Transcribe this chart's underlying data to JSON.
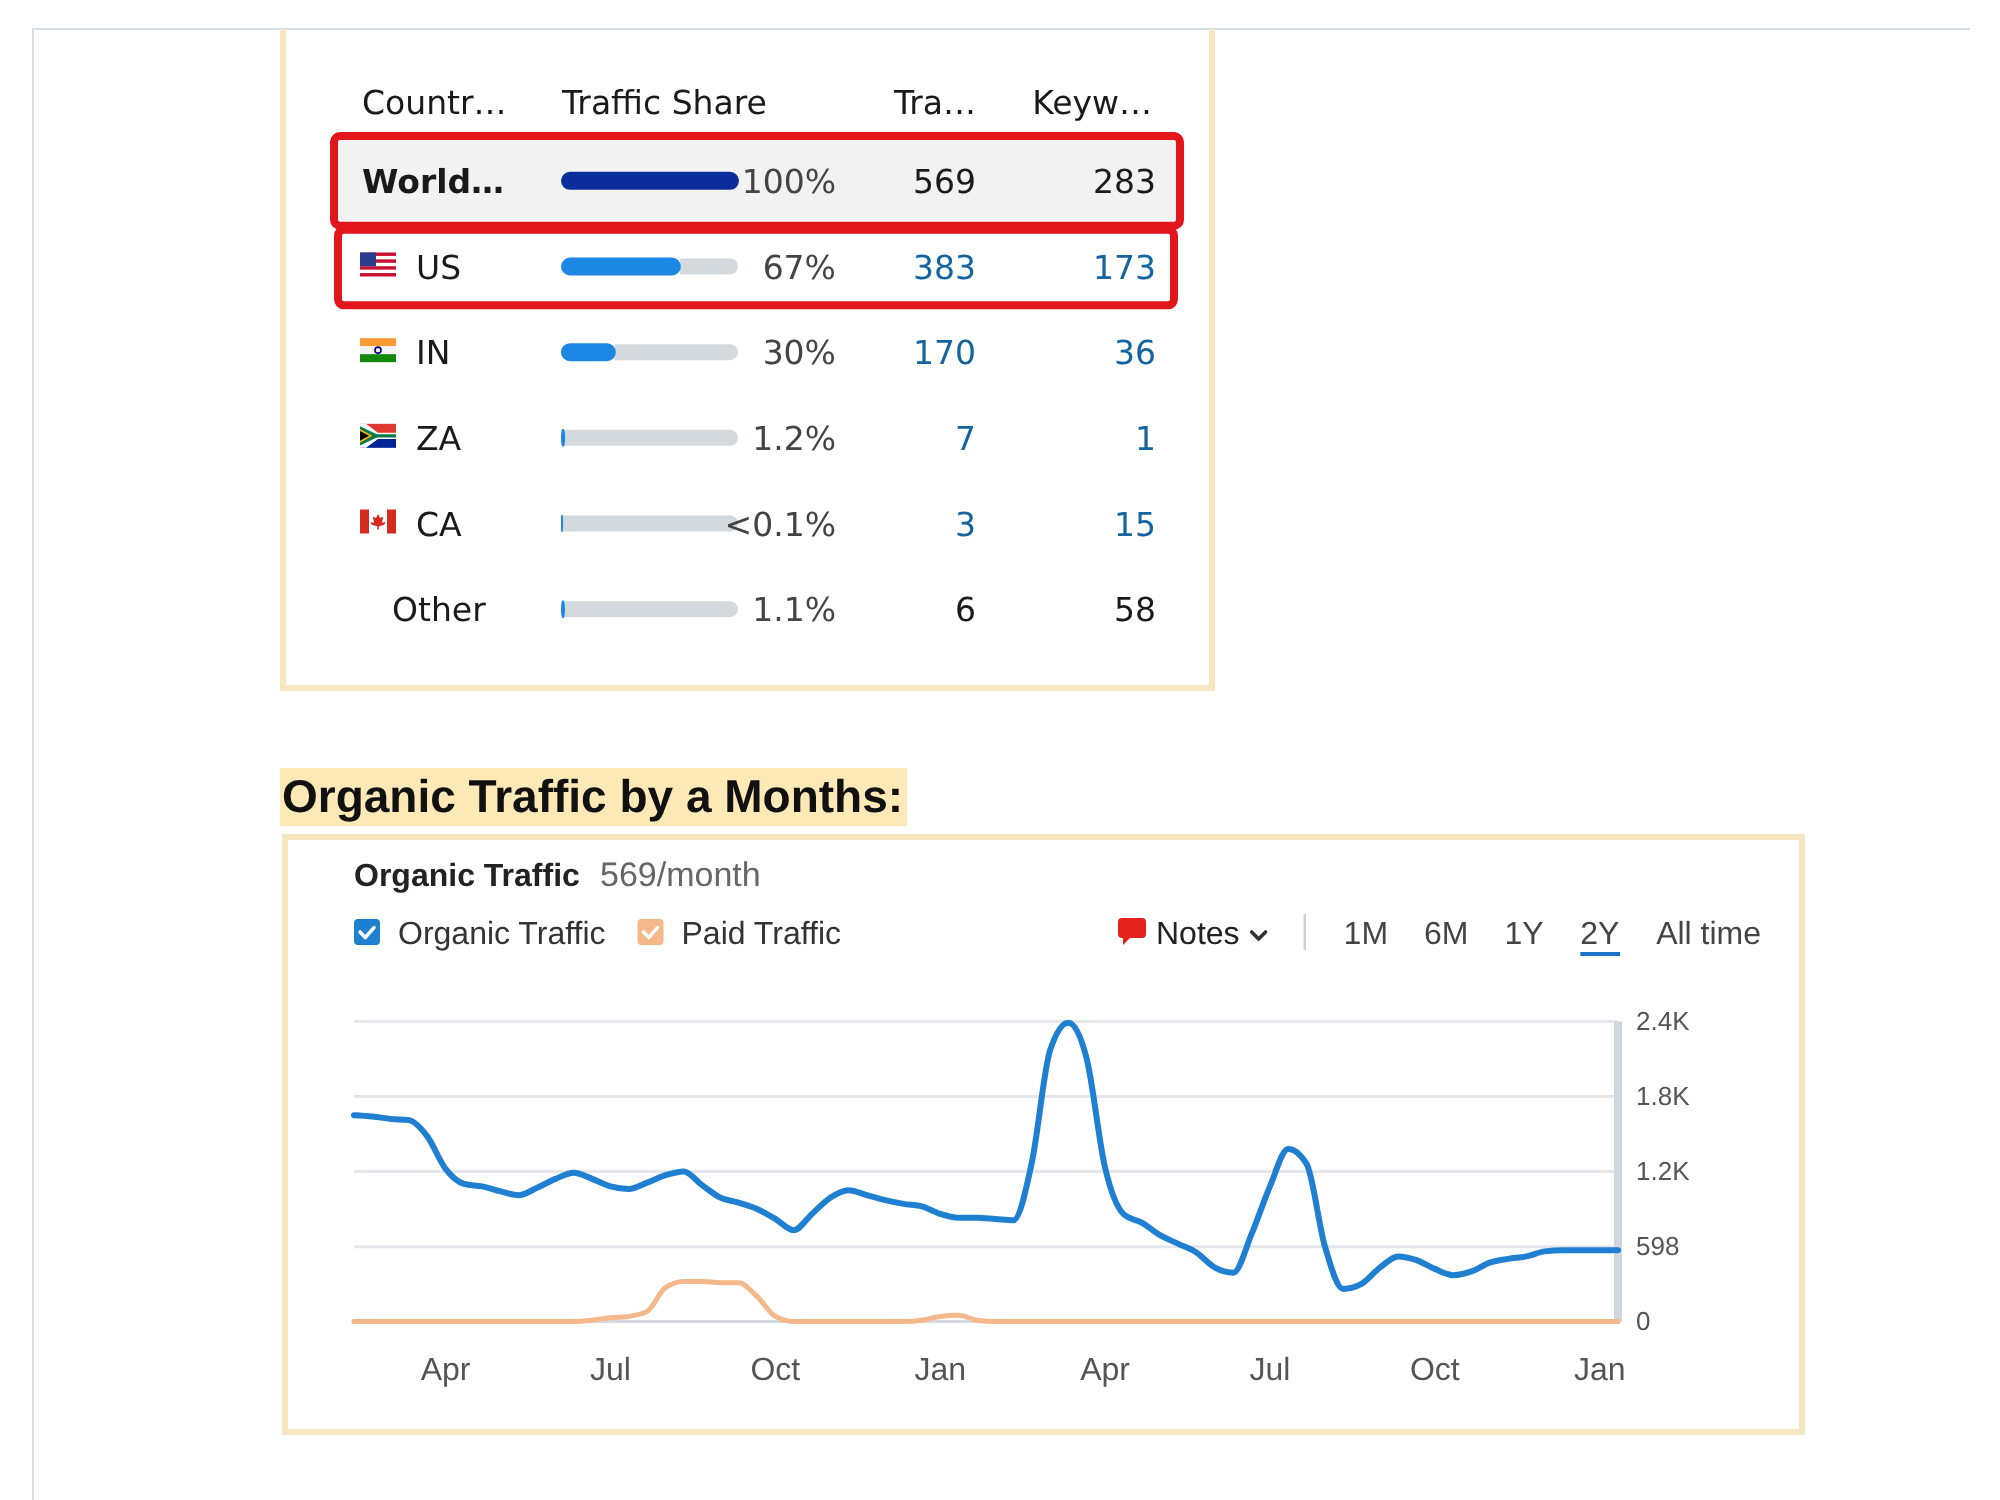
{
  "chart_data": [
    {
      "type": "bar",
      "orientation": "horizontal",
      "ylabel": "Countr…",
      "xlabel": "Traffic Share",
      "categories": [
        "World…",
        "US",
        "IN",
        "ZA",
        "CA",
        "Other"
      ],
      "values": [
        100,
        67,
        30,
        1.2,
        0.05,
        1.1
      ],
      "colors": [
        "#0b2e9c",
        "#1d87e4",
        "#1d87e4",
        "#1d87e4",
        "#1d87e4",
        "#1d87e4"
      ],
      "value_labels": [
        "100%",
        "67%",
        "30%",
        "1.2%",
        "<0.1%",
        "1.1%"
      ],
      "xlim": [
        0,
        100
      ],
      "tick_labels": "y",
      "annotations": [
        "Tra…",
        "Keyw…",
        "569",
        "283",
        "383",
        "173",
        "170",
        "36",
        "7",
        "1",
        "3",
        "15",
        "6",
        "58"
      ]
    },
    {
      "type": "line",
      "title": "Organic Traffic by a Months:",
      "subtitle": "Organic Traffic",
      "annotations": [
        "569/month",
        "Notes",
        "1M",
        "6M",
        "1Y",
        "2Y",
        "All time"
      ],
      "legend": "top left",
      "grid": "y",
      "categories": [
        null,
        null,
        null,
        null,
        null,
        "Apr",
        null,
        null,
        null,
        null,
        null,
        null,
        null,
        null,
        "Jul",
        null,
        null,
        null,
        null,
        null,
        null,
        null,
        null,
        "Oct",
        null,
        null,
        null,
        null,
        null,
        null,
        null,
        null,
        "Jan",
        null,
        null,
        null,
        null,
        null,
        null,
        null,
        null,
        "Apr",
        null,
        null,
        null,
        null,
        null,
        null,
        null,
        null,
        "Jul",
        null,
        null,
        null,
        null,
        null,
        null,
        null,
        null,
        "Oct",
        null,
        null,
        null,
        null,
        null,
        null,
        null,
        null,
        "Jan",
        null
      ],
      "ylim": [
        0,
        2400
      ],
      "yticks": [
        0,
        598,
        {
          "value": 1200,
          "label": "1.2K"
        },
        {
          "value": 1800,
          "label": "1.8K"
        },
        {
          "value": 2400,
          "label": "2.4K"
        }
      ],
      "series": [
        {
          "name": "Organic Traffic",
          "color": "#1f7fd0",
          "values": [
            1650,
            1640,
            1620,
            1610,
            1480,
            1220,
            1100,
            1080,
            1040,
            1010,
            1070,
            1140,
            1190,
            1140,
            1080,
            1060,
            1110,
            1170,
            1200,
            1090,
            990,
            950,
            900,
            820,
            730,
            860,
            990,
            1050,
            1010,
            970,
            940,
            920,
            860,
            830,
            830,
            820,
            810,
            1270,
            2170,
            2390,
            2100,
            1230,
            860,
            790,
            690,
            620,
            550,
            430,
            390,
            700,
            1080,
            1380,
            1260,
            600,
            260,
            300,
            430,
            520,
            490,
            420,
            370,
            400,
            470,
            500,
            520,
            560,
            570,
            570,
            570,
            570
          ]
        },
        {
          "name": "Paid Traffic",
          "color": "#f4b88a",
          "values": [
            0,
            0,
            0,
            0,
            0,
            0,
            0,
            0,
            0,
            0,
            0,
            0,
            0,
            10,
            30,
            40,
            80,
            270,
            320,
            320,
            310,
            310,
            200,
            40,
            0,
            0,
            0,
            0,
            0,
            0,
            0,
            10,
            40,
            50,
            10,
            0,
            0,
            0,
            0,
            0,
            0,
            0,
            0,
            0,
            0,
            0,
            0,
            0,
            0,
            0,
            0,
            0,
            0,
            0,
            0,
            0,
            0,
            0,
            0,
            0,
            0,
            0,
            0,
            0,
            0,
            0,
            0,
            0,
            0,
            0
          ]
        }
      ]
    }
  ]
}
